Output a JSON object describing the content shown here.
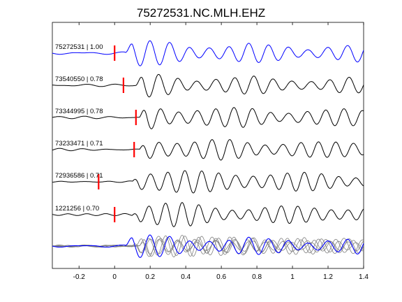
{
  "chart_data": {
    "type": "line",
    "title": "75272531.NC.MLH.EHZ",
    "xlabel": "",
    "ylabel": "",
    "xlim": [
      -0.35,
      1.4
    ],
    "xticks": [
      -0.2,
      0,
      0.2,
      0.4,
      0.6,
      0.8,
      1,
      1.2,
      1.4
    ],
    "xtick_labels": [
      "-0.2",
      "0",
      "0.2",
      "0.4",
      "0.6",
      "0.8",
      "1",
      "1.2",
      "1.4"
    ],
    "grid": false,
    "legend": "none",
    "colors": {
      "reference": "#0000ff",
      "trace": "#000000",
      "pick": "#ff0000",
      "overlay": "#808080"
    },
    "traces": [
      {
        "label": "75272531 | 1.00",
        "id": "75272531",
        "correlation": 1.0,
        "pick_time": 0.0,
        "color": "#0000ff",
        "amplitude": 1.0,
        "start_time": 0.06
      },
      {
        "label": "73540550 | 0.78",
        "id": "73540550",
        "correlation": 0.78,
        "pick_time": 0.05,
        "color": "#000000",
        "amplitude": 0.9,
        "start_time": 0.12
      },
      {
        "label": "73344995 | 0.78",
        "id": "73344995",
        "correlation": 0.78,
        "pick_time": 0.12,
        "color": "#000000",
        "amplitude": 1.0,
        "start_time": 0.14
      },
      {
        "label": "73233471 | 0.71",
        "id": "73233471",
        "correlation": 0.71,
        "pick_time": 0.11,
        "color": "#000000",
        "amplitude": 1.0,
        "start_time": 0.14
      },
      {
        "label": "72936586 | 0.71",
        "id": "72936586",
        "correlation": 0.71,
        "pick_time": -0.09,
        "color": "#000000",
        "amplitude": 1.1,
        "start_time": 0.1
      },
      {
        "label": "1221256 | 0.70",
        "id": "1221256",
        "correlation": 0.7,
        "pick_time": 0.0,
        "color": "#000000",
        "amplitude": 1.0,
        "start_time": 0.1
      }
    ],
    "stack": {
      "series_count": 6,
      "colors": [
        "#0000ff",
        "#808080"
      ]
    }
  }
}
